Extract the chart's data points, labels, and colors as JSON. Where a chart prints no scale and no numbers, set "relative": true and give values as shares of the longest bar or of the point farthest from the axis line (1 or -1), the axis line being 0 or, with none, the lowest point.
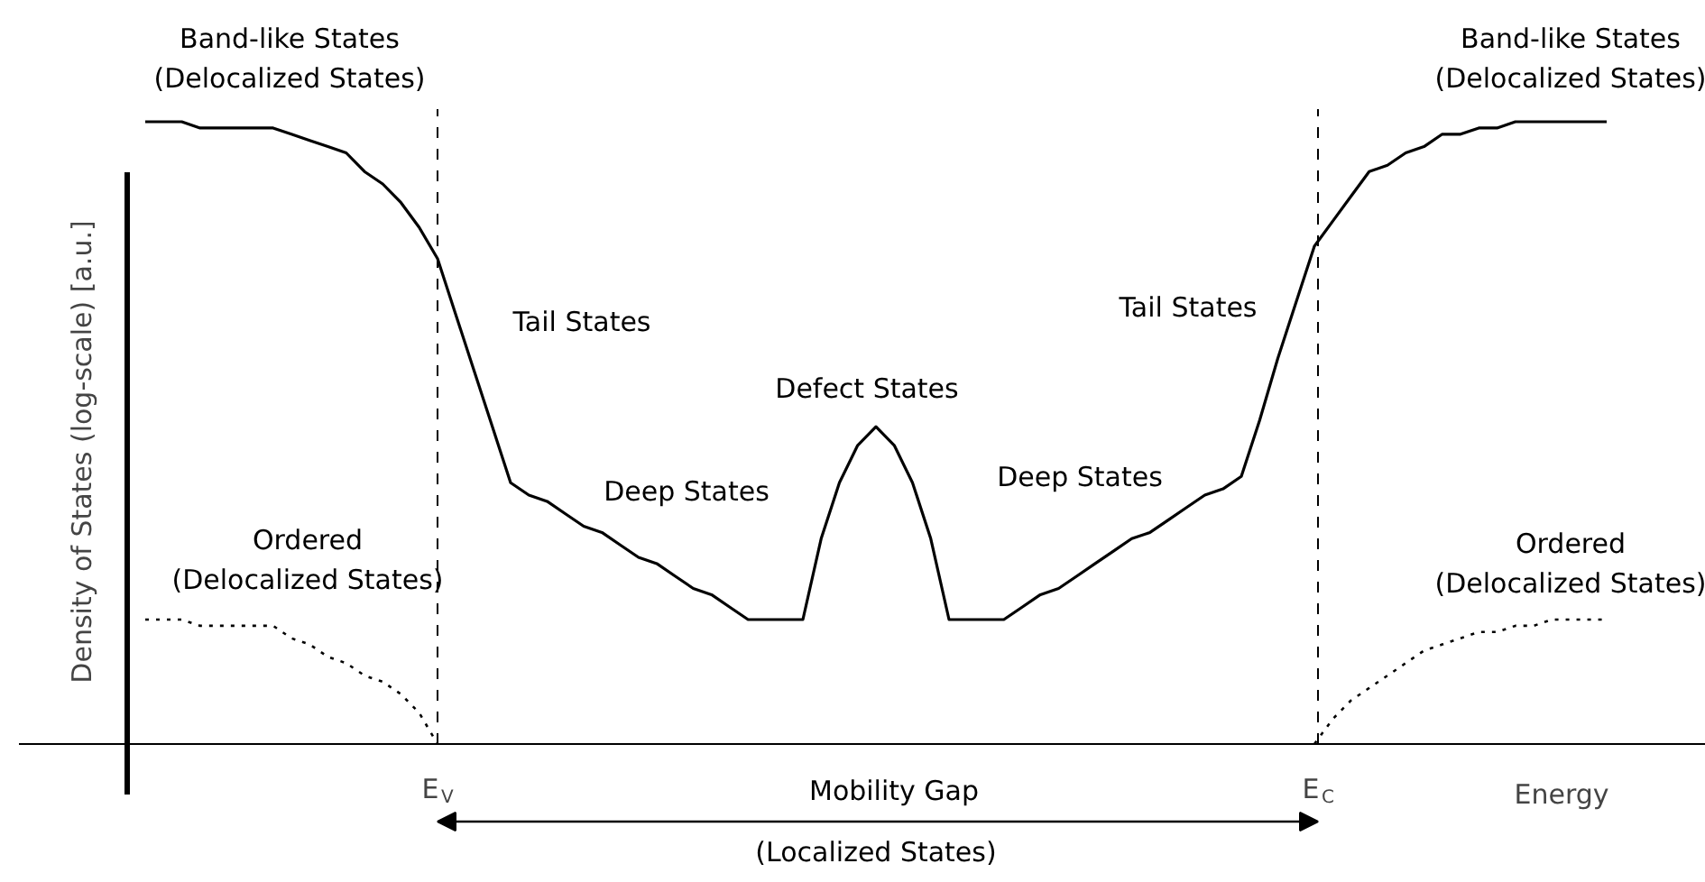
{
  "chart_data": {
    "type": "line",
    "relative": true,
    "ylabel": "Density of States (log-scale) [a.u.]",
    "xlabel": "Energy",
    "tick_labels": false,
    "marker": "none",
    "categories": [
      null,
      null,
      null,
      null,
      null,
      null,
      null,
      null,
      null,
      null,
      null,
      null,
      null,
      null,
      null,
      null,
      null,
      null,
      null,
      null,
      null,
      null,
      null,
      null,
      null,
      null,
      null,
      null,
      null,
      null,
      null,
      null,
      null,
      null,
      null,
      null,
      null,
      null,
      null,
      null,
      null,
      null,
      null,
      null,
      null,
      null,
      null,
      null,
      null,
      null,
      null,
      null,
      null,
      null,
      null,
      null,
      null,
      null,
      null,
      null,
      null,
      null,
      null,
      null,
      null,
      null,
      null,
      null,
      null,
      null,
      null,
      null,
      null,
      null,
      null,
      null,
      null,
      null,
      null,
      null,
      null
    ],
    "series": [
      {
        "color": "#000000",
        "line_style": "solid",
        "values": [
          1.0,
          1.0,
          1.0,
          0.99,
          0.99,
          0.99,
          0.99,
          0.99,
          0.98,
          0.97,
          0.96,
          0.95,
          0.92,
          0.9,
          0.87,
          0.83,
          0.78,
          0.69,
          0.6,
          0.51,
          0.42,
          0.4,
          0.39,
          0.37,
          0.35,
          0.34,
          0.32,
          0.3,
          0.29,
          0.27,
          0.25,
          0.24,
          0.22,
          0.2,
          0.2,
          0.2,
          0.2,
          0.33,
          0.42,
          0.48,
          0.51,
          0.48,
          0.42,
          0.33,
          0.2,
          0.2,
          0.2,
          0.2,
          0.22,
          0.24,
          0.25,
          0.27,
          0.29,
          0.31,
          0.33,
          0.34,
          0.36,
          0.38,
          0.4,
          0.41,
          0.43,
          0.52,
          0.62,
          0.71,
          0.8,
          0.84,
          0.88,
          0.92,
          0.93,
          0.95,
          0.96,
          0.98,
          0.98,
          0.99,
          0.99,
          1.0,
          1.0,
          1.0,
          1.0,
          1.0,
          1.0
        ]
      },
      {
        "color": "#000000",
        "line_style": "dotted",
        "values": [
          0.2,
          0.2,
          0.2,
          0.19,
          0.19,
          0.19,
          0.19,
          0.19,
          0.17,
          0.16,
          0.14,
          0.13,
          0.11,
          0.1,
          0.08,
          0.05,
          0.0,
          null,
          null,
          null,
          null,
          null,
          null,
          null,
          null,
          null,
          null,
          null,
          null,
          null,
          null,
          null,
          null,
          null,
          null,
          null,
          null,
          null,
          null,
          null,
          null,
          null,
          null,
          null,
          null,
          null,
          null,
          null,
          null,
          null,
          null,
          null,
          null,
          null,
          null,
          null,
          null,
          null,
          null,
          null,
          null,
          null,
          null,
          null,
          null,
          null,
          null,
          null,
          null,
          null,
          null,
          null,
          null,
          null,
          null,
          null,
          null,
          null,
          null,
          null,
          null
        ]
      },
      {
        "color": "#000000",
        "line_style": "dotted",
        "values": [
          null,
          null,
          null,
          null,
          null,
          null,
          null,
          null,
          null,
          null,
          null,
          null,
          null,
          null,
          null,
          null,
          null,
          null,
          null,
          null,
          null,
          null,
          null,
          null,
          null,
          null,
          null,
          null,
          null,
          null,
          null,
          null,
          null,
          null,
          null,
          null,
          null,
          null,
          null,
          null,
          null,
          null,
          null,
          null,
          null,
          null,
          null,
          null,
          null,
          null,
          null,
          null,
          null,
          null,
          null,
          null,
          null,
          null,
          null,
          null,
          null,
          null,
          null,
          null,
          0.0,
          0.04,
          0.07,
          0.09,
          0.11,
          0.13,
          0.15,
          0.16,
          0.17,
          0.18,
          0.18,
          0.19,
          0.19,
          0.2,
          0.2,
          0.2,
          0.2
        ]
      }
    ],
    "annotations": [
      "Band-like States\n(Delocalized States)",
      "Band-like States\n(Delocalized States)",
      "Tail States",
      "Deep States",
      "Defect States",
      "Deep States",
      "Tail States",
      "Ordered\n(Delocalized States)",
      "Ordered\n(Delocalized States)",
      "Mobility Gap",
      "(Localized States)",
      "E$_{V}$",
      "E$_{C}$"
    ]
  }
}
